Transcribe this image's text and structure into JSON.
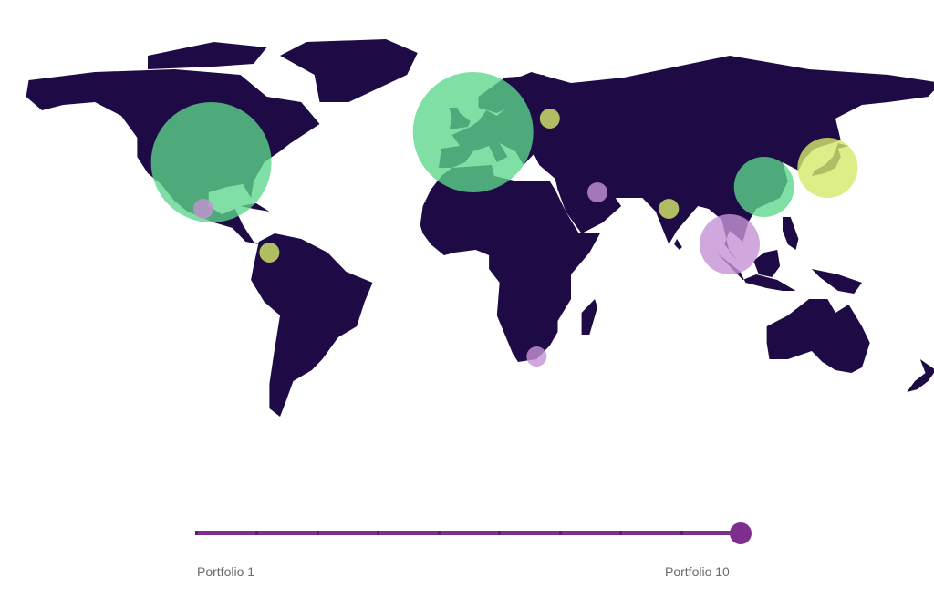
{
  "colors": {
    "land": "#1e0b45",
    "green": "#5cd68a",
    "lime": "#d4ea6a",
    "pink": "#c492d4",
    "slider": "#7e2f8e"
  },
  "bubbles": [
    {
      "name": "United States",
      "lon": -96,
      "lat": 38,
      "size": "large",
      "color": "green"
    },
    {
      "name": "Europe",
      "lon": 3,
      "lat": 49,
      "size": "large",
      "color": "green"
    },
    {
      "name": "China",
      "lon": 113,
      "lat": 29,
      "size": "medium",
      "color": "green"
    },
    {
      "name": "Japan",
      "lon": 137,
      "lat": 36,
      "size": "medium",
      "color": "lime"
    },
    {
      "name": "Russia",
      "lon": 32,
      "lat": 54,
      "size": "small",
      "color": "lime"
    },
    {
      "name": "India",
      "lon": 77,
      "lat": 21,
      "size": "small",
      "color": "lime"
    },
    {
      "name": "Colombia",
      "lon": -74,
      "lat": 5,
      "size": "small",
      "color": "lime"
    },
    {
      "name": "Mexico",
      "lon": -99,
      "lat": 21,
      "size": "small",
      "color": "pink"
    },
    {
      "name": "Saudi Arabia",
      "lon": 50,
      "lat": 27,
      "size": "small",
      "color": "pink"
    },
    {
      "name": "Southeast Asia",
      "lon": 100,
      "lat": 8,
      "size": "medium",
      "color": "pink"
    },
    {
      "name": "South Africa",
      "lon": 27,
      "lat": -33,
      "size": "small",
      "color": "pink"
    }
  ],
  "slider": {
    "start_label": "Portfolio 1",
    "end_label": "Portfolio 10",
    "steps": 10,
    "value": 10
  }
}
